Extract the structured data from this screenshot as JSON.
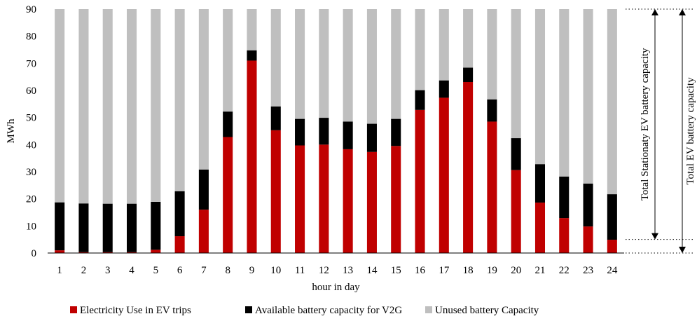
{
  "chart_data": {
    "type": "bar",
    "stacked": true,
    "categories": [
      "1",
      "2",
      "3",
      "4",
      "5",
      "6",
      "7",
      "8",
      "9",
      "10",
      "11",
      "12",
      "13",
      "14",
      "15",
      "16",
      "17",
      "18",
      "19",
      "20",
      "21",
      "22",
      "23",
      "24"
    ],
    "series": [
      {
        "name": "Electricity Use in EV trips",
        "color": "#c00000",
        "values": [
          1.0,
          0.3,
          0.3,
          0.3,
          1.2,
          6.2,
          16.0,
          42.8,
          71.0,
          45.3,
          39.7,
          40.0,
          38.3,
          37.3,
          39.5,
          52.8,
          57.3,
          63.1,
          48.5,
          30.6,
          18.6,
          12.9,
          9.8,
          4.9
        ]
      },
      {
        "name": "Available battery capacity for V2G",
        "color": "#000000",
        "values": [
          17.7,
          18.0,
          17.9,
          17.9,
          17.7,
          16.6,
          14.8,
          9.4,
          3.8,
          8.8,
          9.8,
          9.9,
          10.2,
          10.4,
          10.0,
          7.3,
          6.4,
          5.3,
          8.2,
          11.8,
          14.2,
          15.3,
          15.8,
          16.8
        ]
      },
      {
        "name": "Unused battery Capacity",
        "color": "#bfbfbf",
        "values": [
          71.3,
          71.7,
          71.8,
          71.8,
          71.1,
          67.2,
          59.2,
          37.8,
          15.2,
          35.9,
          40.5,
          40.1,
          41.5,
          42.3,
          40.5,
          29.9,
          26.3,
          21.6,
          33.3,
          47.6,
          57.2,
          61.8,
          64.4,
          68.3
        ]
      }
    ],
    "xlabel": "hour in day",
    "ylabel": "MWh",
    "ylim": [
      0,
      90
    ],
    "yticks": [
      0,
      10,
      20,
      30,
      40,
      50,
      60,
      70,
      80,
      90
    ],
    "grid": false,
    "legend_position": "bottom",
    "annotations": {
      "stationary_label": "Total Stationaty EV battery capacity",
      "total_label": "Total EV battery capacity",
      "stationary_range": [
        5,
        90
      ],
      "total_range": [
        0,
        90
      ]
    }
  }
}
